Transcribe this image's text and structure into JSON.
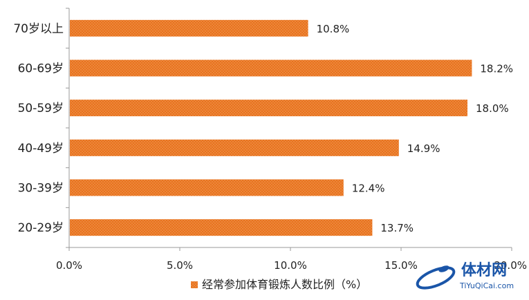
{
  "chart_data": {
    "type": "bar",
    "orientation": "horizontal",
    "categories": [
      "70岁以上",
      "60-69岁",
      "50-59岁",
      "40-49岁",
      "30-39岁",
      "20-29岁"
    ],
    "series": [
      {
        "name": "经常参加体育锻炼人数比例（%）",
        "values": [
          10.8,
          18.2,
          18.0,
          14.9,
          12.4,
          13.7
        ],
        "value_labels": [
          "10.8%",
          "18.2%",
          "18.0%",
          "14.9%",
          "12.4%",
          "13.7%"
        ],
        "color": "#e8731e"
      }
    ],
    "xlim": [
      0,
      20
    ],
    "x_ticks": [
      0,
      5,
      10,
      15,
      20
    ],
    "x_tick_labels": [
      "0.0%",
      "5.0%",
      "10.0%",
      "15.0%",
      "20.0%"
    ],
    "grid": false,
    "legend_position": "bottom"
  },
  "watermark": {
    "text_cn": "体材网",
    "text_en": "TiYuQiCai.com",
    "color": "#1a55a8"
  }
}
